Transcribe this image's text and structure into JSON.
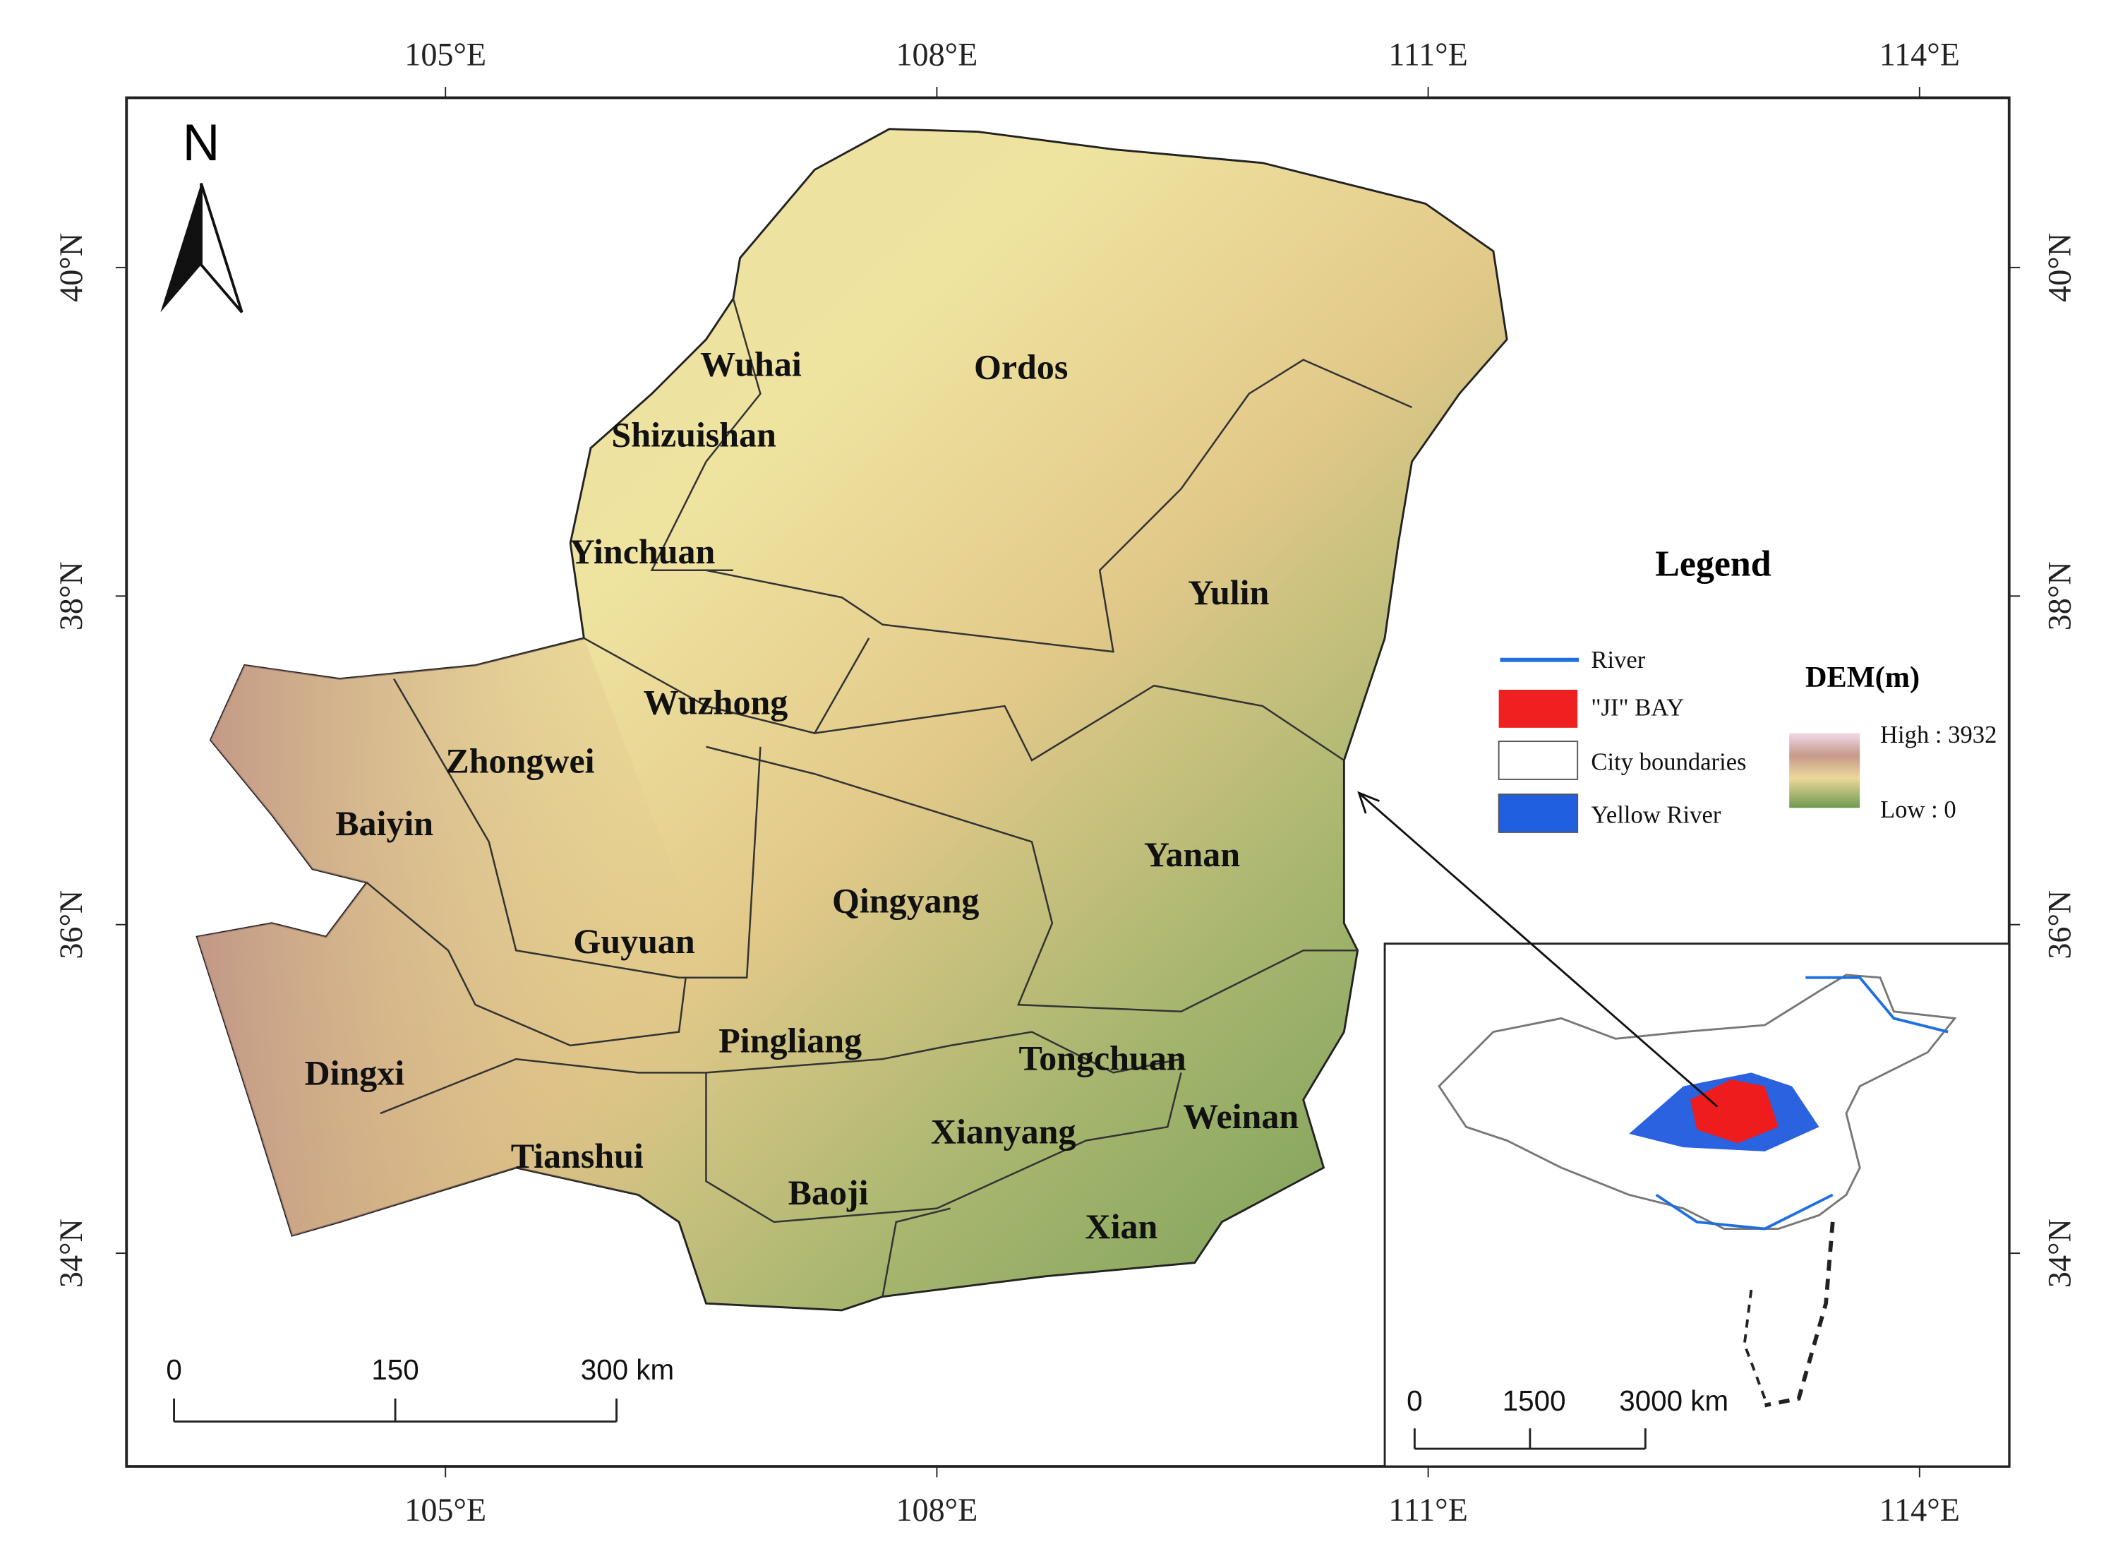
{
  "axes": {
    "top": [
      "105°E",
      "108°E",
      "111°E",
      "114°E"
    ],
    "bottom": [
      "105°E",
      "108°E",
      "111°E",
      "114°E"
    ],
    "left": [
      "40°N",
      "38°N",
      "36°N",
      "34°N"
    ],
    "right": [
      "40°N",
      "38°N",
      "36°N",
      "34°N"
    ]
  },
  "north": "N",
  "cities": [
    "Wuhai",
    "Ordos",
    "Shizuishan",
    "Yinchuan",
    "Yulin",
    "Wuzhong",
    "Zhongwei",
    "Baiyin",
    "Yanan",
    "Qingyang",
    "Guyuan",
    "Pingliang",
    "Tongchuan",
    "Dingxi",
    "Weinan",
    "Xianyang",
    "Tianshui",
    "Baoji",
    "Xian"
  ],
  "legend": {
    "title": "Legend",
    "items": [
      "River",
      "\"JI\" BAY",
      "City boundaries",
      "Yellow River"
    ],
    "dem_title": "DEM(m)",
    "high": "High : 3932",
    "low": "Low : 0"
  },
  "scale_bar": [
    "0",
    "150",
    "300 km"
  ],
  "inset_scale_bar": [
    "0",
    "1500",
    "3000 km"
  ]
}
